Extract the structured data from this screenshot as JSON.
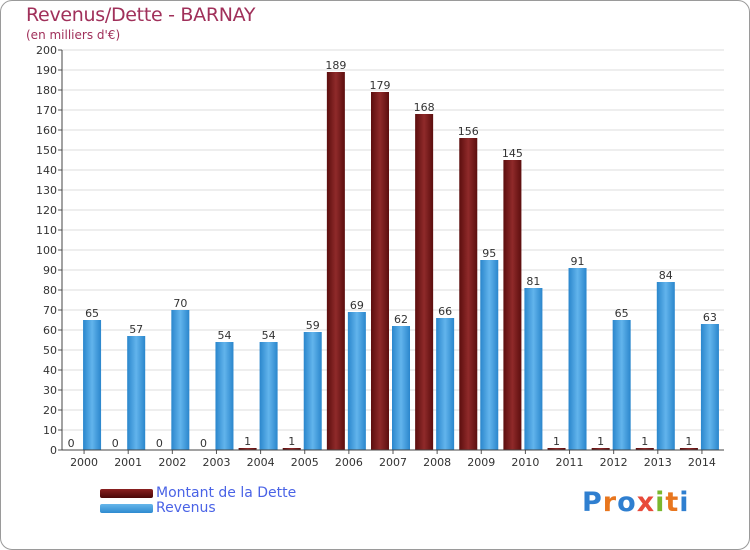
{
  "title": "Revenus/Dette - BARNAY",
  "subtitle": "(en milliers d'€)",
  "colors": {
    "debt": "#7a1818",
    "debt_light": "#8f2a2a",
    "revenue": "#4ea5e3",
    "revenue_dark": "#2a86cc",
    "title": "#a0305a",
    "legend_text": "#4a63e6"
  },
  "legend": {
    "debt_label": "Montant de la Dette",
    "revenue_label": "Revenus"
  },
  "logo": {
    "letters": [
      "P",
      "r",
      "o",
      "x",
      "i",
      "t",
      "i"
    ],
    "colors": [
      "#2f7fd0",
      "#e8761e",
      "#2f7fd0",
      "#e84a3a",
      "#7ab82e",
      "#e8761e",
      "#2f7fd0"
    ]
  },
  "chart_data": {
    "type": "bar",
    "title": "Revenus/Dette - BARNAY",
    "ylabel": "(en milliers d'€)",
    "xlabel": "",
    "ylim": [
      0,
      200
    ],
    "ytick_step": 10,
    "grid": true,
    "legend_position": "bottom-left",
    "categories": [
      "2000",
      "2001",
      "2002",
      "2003",
      "2004",
      "2005",
      "2006",
      "2007",
      "2008",
      "2009",
      "2010",
      "2011",
      "2012",
      "2013",
      "2014"
    ],
    "series": [
      {
        "name": "Montant de la Dette",
        "values": [
          0,
          0,
          0,
          0,
          1,
          1,
          189,
          179,
          168,
          156,
          145,
          1,
          1,
          1,
          1
        ]
      },
      {
        "name": "Revenus",
        "values": [
          65,
          57,
          70,
          54,
          54,
          59,
          69,
          62,
          66,
          95,
          81,
          91,
          65,
          84,
          63
        ]
      }
    ]
  }
}
